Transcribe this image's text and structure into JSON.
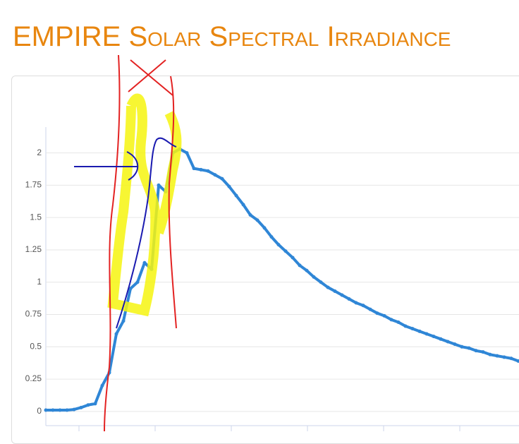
{
  "chart_data": {
    "type": "line",
    "title": "EMPIRE Solar Spectral Irradiance",
    "values": [
      0.01,
      0.01,
      0.01,
      0.01,
      0.015,
      0.03,
      0.05,
      0.06,
      0.2,
      0.3,
      0.6,
      0.7,
      0.95,
      1.0,
      1.15,
      1.1,
      1.75,
      1.7,
      2.0,
      2.03,
      2.0,
      1.88,
      1.87,
      1.86,
      1.83,
      1.8,
      1.74,
      1.67,
      1.6,
      1.52,
      1.48,
      1.42,
      1.35,
      1.29,
      1.24,
      1.19,
      1.13,
      1.09,
      1.04,
      1.0,
      0.96,
      0.93,
      0.9,
      0.87,
      0.84,
      0.82,
      0.79,
      0.76,
      0.74,
      0.71,
      0.69,
      0.66,
      0.64,
      0.62,
      0.6,
      0.58,
      0.56,
      0.54,
      0.52,
      0.5,
      0.49,
      0.47,
      0.46,
      0.44,
      0.43,
      0.42,
      0.41,
      0.39
    ],
    "color": "#2f86d6",
    "ylim": [
      -0.11,
      2.2
    ],
    "yticks": [
      0,
      0.25,
      0.5,
      0.75,
      1,
      1.25,
      1.5,
      1.75,
      2
    ],
    "grid": true
  }
}
